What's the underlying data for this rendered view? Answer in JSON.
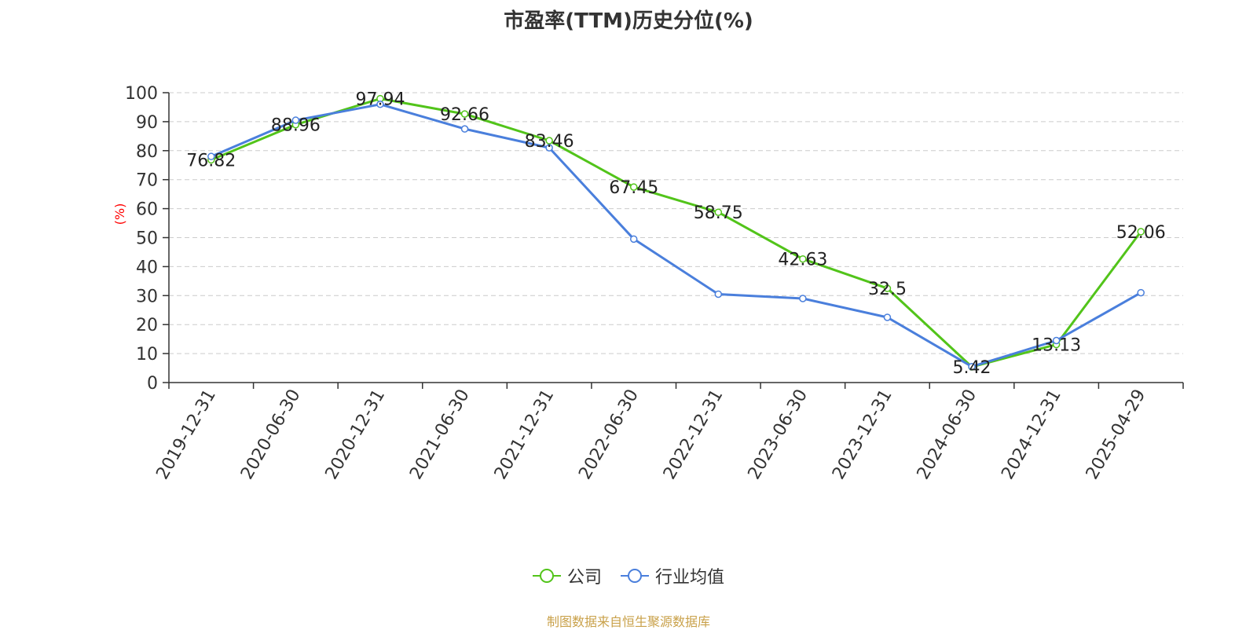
{
  "title": "市盈率(TTM)历史分位(%)",
  "footer": "制图数据来自恒生聚源数据库",
  "colors": {
    "company": "#52c41a",
    "industry": "#4a7fdc",
    "ylabel": "#ff0000",
    "footer": "#c9a14a"
  },
  "chart_data": {
    "type": "line",
    "title": "市盈率(TTM)历史分位(%)",
    "ylabel": "(%)",
    "ylim": [
      0,
      100
    ],
    "yticks": [
      0,
      10,
      20,
      30,
      40,
      50,
      60,
      70,
      80,
      90,
      100
    ],
    "grid": true,
    "legend_position": "bottom",
    "categories": [
      "2019-12-31",
      "2020-06-30",
      "2020-12-31",
      "2021-06-30",
      "2021-12-31",
      "2022-06-30",
      "2022-12-31",
      "2023-06-30",
      "2023-12-31",
      "2024-06-30",
      "2024-12-31",
      "2025-04-29"
    ],
    "series": [
      {
        "name": "公司",
        "values": [
          76.82,
          88.96,
          97.94,
          92.66,
          83.46,
          67.45,
          58.75,
          42.63,
          32.5,
          5.42,
          13.13,
          52.06
        ],
        "labels": [
          "76.82",
          "88.96",
          "97.94",
          "92.66",
          "83.46",
          "67.45",
          "58.75",
          "42.63",
          "32.5",
          "5.42",
          "13.13",
          "52.06"
        ]
      },
      {
        "name": "行业均值",
        "values": [
          78,
          90.5,
          96,
          87.5,
          81,
          49.5,
          30.5,
          29,
          22.5,
          5.5,
          14.5,
          31
        ]
      }
    ]
  }
}
